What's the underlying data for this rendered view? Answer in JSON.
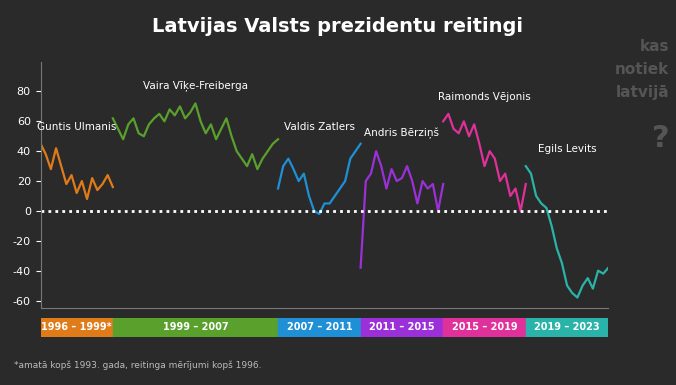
{
  "chart_data": {
    "type": "line",
    "title": "Latvijas Valsts prezidentu reitingi",
    "xlim": [
      1996,
      2023.5
    ],
    "ylim": [
      -65,
      100
    ],
    "yticks": [
      -60,
      -40,
      -20,
      0,
      20,
      40,
      60,
      80
    ],
    "tick_labels": "y",
    "grid": false,
    "hline": 0,
    "series": [
      {
        "name": "Guntis Ulmanis",
        "color": "#e07b1a",
        "x": [
          1996,
          1996.25,
          1996.5,
          1996.75,
          1997,
          1997.25,
          1997.5,
          1997.75,
          1998,
          1998.25,
          1998.5,
          1998.75,
          1999,
          1999.25,
          1999.5
        ],
        "values": [
          45,
          38,
          28,
          42,
          30,
          18,
          24,
          12,
          20,
          8,
          22,
          14,
          18,
          24,
          16
        ]
      },
      {
        "name": "Vaira Vīķe-Freiberga",
        "color": "#5aa02c",
        "x": [
          1999.5,
          1999.75,
          2000,
          2000.25,
          2000.5,
          2000.75,
          2001,
          2001.25,
          2001.5,
          2001.75,
          2002,
          2002.25,
          2002.5,
          2002.75,
          2003,
          2003.25,
          2003.5,
          2003.75,
          2004,
          2004.25,
          2004.5,
          2004.75,
          2005,
          2005.25,
          2005.5,
          2005.75,
          2006,
          2006.25,
          2006.5,
          2006.75,
          2007,
          2007.25,
          2007.5
        ],
        "values": [
          62,
          55,
          48,
          58,
          62,
          52,
          50,
          58,
          62,
          65,
          60,
          68,
          64,
          70,
          62,
          66,
          72,
          60,
          52,
          58,
          48,
          55,
          62,
          50,
          40,
          35,
          30,
          38,
          28,
          35,
          40,
          45,
          48
        ]
      },
      {
        "name": "Valdis Zatlers",
        "color": "#1f8fd6",
        "x": [
          2007.5,
          2007.75,
          2008,
          2008.25,
          2008.5,
          2008.75,
          2009,
          2009.25,
          2009.5,
          2009.75,
          2010,
          2010.25,
          2010.5,
          2010.75,
          2011,
          2011.25,
          2011.5
        ],
        "values": [
          15,
          30,
          35,
          28,
          20,
          25,
          10,
          0,
          -2,
          5,
          5,
          10,
          15,
          20,
          35,
          40,
          45
        ]
      },
      {
        "name": "Andris Bērziņš",
        "color": "#9b30d9",
        "x": [
          2011.5,
          2011.75,
          2012,
          2012.25,
          2012.5,
          2012.75,
          2013,
          2013.25,
          2013.5,
          2013.75,
          2014,
          2014.25,
          2014.5,
          2014.75,
          2015,
          2015.25,
          2015.5
        ],
        "values": [
          -38,
          20,
          25,
          40,
          30,
          15,
          28,
          20,
          22,
          30,
          20,
          5,
          20,
          15,
          18,
          0,
          18
        ]
      },
      {
        "name": "Raimonds Vējonis",
        "color": "#e0309a",
        "x": [
          2015.5,
          2015.75,
          2016,
          2016.25,
          2016.5,
          2016.75,
          2017,
          2017.25,
          2017.5,
          2017.75,
          2018,
          2018.25,
          2018.5,
          2018.75,
          2019,
          2019.25,
          2019.5
        ],
        "values": [
          60,
          65,
          55,
          52,
          60,
          50,
          58,
          45,
          30,
          40,
          35,
          20,
          25,
          10,
          15,
          0,
          18
        ]
      },
      {
        "name": "Egils Levits",
        "color": "#2ab3a8",
        "x": [
          2019.5,
          2019.75,
          2020,
          2020.25,
          2020.5,
          2020.75,
          2021,
          2021.25,
          2021.5,
          2021.75,
          2022,
          2022.25,
          2022.5,
          2022.75,
          2023,
          2023.25,
          2023.5
        ],
        "values": [
          30,
          25,
          10,
          5,
          2,
          -10,
          -25,
          -35,
          -50,
          -55,
          -58,
          -50,
          -45,
          -52,
          -40,
          -42,
          -38
        ]
      }
    ],
    "periods": [
      {
        "label": "1996 – 1999*",
        "start": 1996,
        "end": 1999.5,
        "color": "#e07b1a"
      },
      {
        "label": "1999 – 2007",
        "start": 1999.5,
        "end": 2007.5,
        "color": "#5aa02c"
      },
      {
        "label": "2007 – 2011",
        "start": 2007.5,
        "end": 2011.5,
        "color": "#1f8fd6"
      },
      {
        "label": "2011 – 2015",
        "start": 2011.5,
        "end": 2015.5,
        "color": "#9b30d9"
      },
      {
        "label": "2015 – 2019",
        "start": 2015.5,
        "end": 2019.5,
        "color": "#e0309a"
      },
      {
        "label": "2019 – 2023",
        "start": 2019.5,
        "end": 2023.5,
        "color": "#2ab3a8"
      }
    ],
    "footnote": "*amatā kopš 1993. gada, reitinga mērījumi kopš 1996.",
    "watermark": [
      "kas",
      "notiek",
      "latvijā",
      "?"
    ]
  }
}
